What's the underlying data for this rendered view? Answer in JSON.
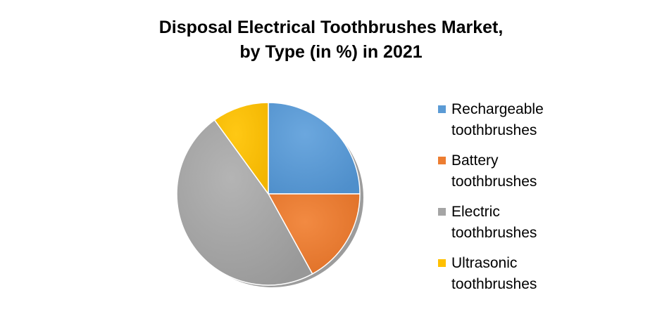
{
  "chart_data": {
    "type": "pie",
    "title": [
      "Disposal Electrical Toothbrushes Market,",
      "by Type (in %) in 2021"
    ],
    "slices": [
      {
        "name": "Rechargeable toothbrushes",
        "label_lines": [
          "Rechargeable",
          "toothbrushes"
        ],
        "value": 25,
        "color": "#5B9BD5"
      },
      {
        "name": "Battery toothbrushes",
        "label_lines": [
          "Battery",
          "toothbrushes"
        ],
        "value": 17,
        "color": "#ED7D31"
      },
      {
        "name": "Electric toothbrushes",
        "label_lines": [
          "Electric",
          "toothbrushes"
        ],
        "value": 48,
        "color": "#A5A5A5"
      },
      {
        "name": "Ultrasonic toothbrushes",
        "label_lines": [
          "Ultrasonic",
          "toothbrushes"
        ],
        "value": 10,
        "color": "#FFC000"
      }
    ],
    "start_angle_deg": 0,
    "direction": "clockwise",
    "style": "3d-shadow",
    "data_labels": false,
    "legend_position": "right"
  }
}
